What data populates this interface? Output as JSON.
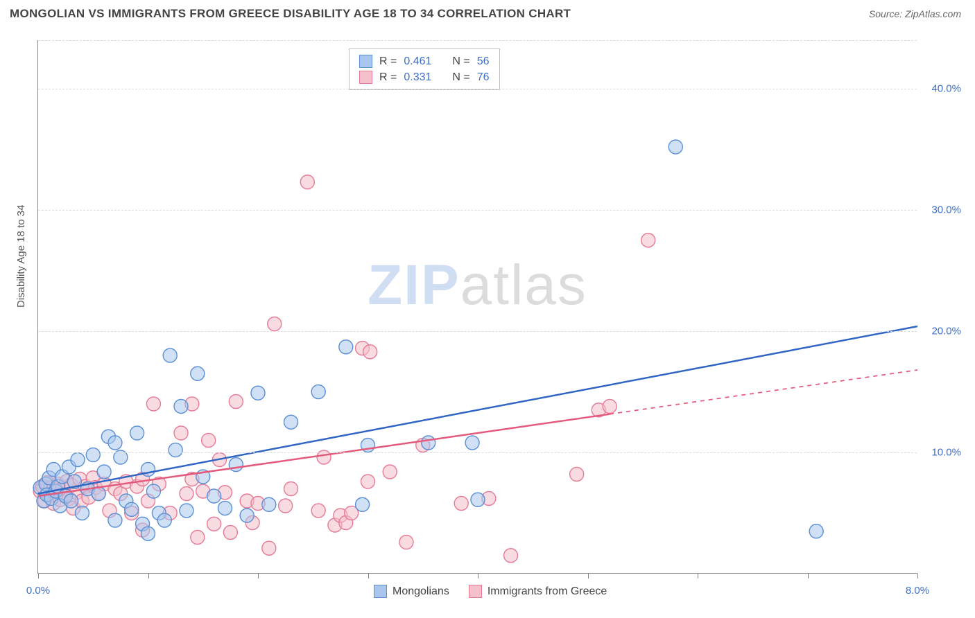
{
  "header": {
    "title": "MONGOLIAN VS IMMIGRANTS FROM GREECE DISABILITY AGE 18 TO 34 CORRELATION CHART",
    "source": "Source: ZipAtlas.com"
  },
  "chart": {
    "type": "scatter",
    "watermark_zip": "ZIP",
    "watermark_atlas": "atlas",
    "yaxis_label": "Disability Age 18 to 34",
    "background_color": "#ffffff",
    "grid_color": "#dcdcdc",
    "axis_color": "#888888",
    "xlim": [
      0,
      8
    ],
    "ylim": [
      0,
      44
    ],
    "xtick_step": 1,
    "xtick_labels": {
      "0": "0.0%",
      "8": "8.0%"
    },
    "ytick_step": 10,
    "ytick_labels": {
      "10": "10.0%",
      "20": "20.0%",
      "30": "30.0%",
      "40": "40.0%"
    },
    "tick_color": "#3b6fc9",
    "label_fontsize": 15,
    "marker_radius": 10,
    "marker_opacity": 0.55,
    "series": [
      {
        "id": "mongolians",
        "label": "Mongolians",
        "color_fill": "#a9c6ec",
        "color_stroke": "#5a8fd6",
        "R": "0.461",
        "N": "56",
        "trend": {
          "x0": 0,
          "y0": 6.6,
          "x1": 8,
          "y1": 20.4,
          "solid_until_x": 8,
          "color": "#2f66c4",
          "width": 2.5
        },
        "points": [
          [
            0.02,
            7.1
          ],
          [
            0.05,
            6.0
          ],
          [
            0.07,
            7.4
          ],
          [
            0.08,
            6.5
          ],
          [
            0.1,
            7.9
          ],
          [
            0.12,
            6.2
          ],
          [
            0.14,
            8.6
          ],
          [
            0.16,
            6.8
          ],
          [
            0.18,
            7.2
          ],
          [
            0.2,
            5.6
          ],
          [
            0.22,
            8.0
          ],
          [
            0.25,
            6.4
          ],
          [
            0.28,
            8.8
          ],
          [
            0.3,
            6.0
          ],
          [
            0.33,
            7.6
          ],
          [
            0.36,
            9.4
          ],
          [
            0.4,
            5.0
          ],
          [
            0.45,
            7.0
          ],
          [
            0.5,
            9.8
          ],
          [
            0.55,
            6.6
          ],
          [
            0.6,
            8.4
          ],
          [
            0.64,
            11.3
          ],
          [
            0.7,
            4.4
          ],
          [
            0.75,
            9.6
          ],
          [
            0.8,
            6.0
          ],
          [
            0.85,
            5.3
          ],
          [
            0.9,
            11.6
          ],
          [
            0.95,
            4.1
          ],
          [
            1.0,
            8.6
          ],
          [
            1.05,
            6.8
          ],
          [
            1.1,
            5.0
          ],
          [
            1.15,
            4.4
          ],
          [
            1.2,
            18.0
          ],
          [
            1.25,
            10.2
          ],
          [
            1.3,
            13.8
          ],
          [
            1.35,
            5.2
          ],
          [
            1.45,
            16.5
          ],
          [
            1.5,
            8.0
          ],
          [
            1.6,
            6.4
          ],
          [
            1.7,
            5.4
          ],
          [
            1.8,
            9.0
          ],
          [
            1.9,
            4.8
          ],
          [
            2.0,
            14.9
          ],
          [
            2.1,
            5.7
          ],
          [
            2.3,
            12.5
          ],
          [
            2.55,
            15.0
          ],
          [
            2.8,
            18.7
          ],
          [
            2.95,
            5.7
          ],
          [
            3.0,
            10.6
          ],
          [
            3.55,
            10.8
          ],
          [
            3.95,
            10.8
          ],
          [
            4.0,
            6.1
          ],
          [
            5.8,
            35.2
          ],
          [
            7.08,
            3.5
          ],
          [
            1.0,
            3.3
          ],
          [
            0.7,
            10.8
          ]
        ]
      },
      {
        "id": "greece",
        "label": "Immigrants from Greece",
        "color_fill": "#f4c0cb",
        "color_stroke": "#e77a94",
        "R": "0.331",
        "N": "76",
        "trend": {
          "x0": 0,
          "y0": 6.4,
          "x1": 8,
          "y1": 16.8,
          "solid_until_x": 5.2,
          "color": "#e35a7c",
          "width": 2.5
        },
        "points": [
          [
            0.02,
            6.8
          ],
          [
            0.04,
            7.2
          ],
          [
            0.06,
            6.0
          ],
          [
            0.08,
            7.5
          ],
          [
            0.1,
            6.4
          ],
          [
            0.12,
            7.1
          ],
          [
            0.14,
            5.8
          ],
          [
            0.16,
            6.9
          ],
          [
            0.18,
            7.4
          ],
          [
            0.2,
            6.1
          ],
          [
            0.22,
            7.0
          ],
          [
            0.24,
            6.5
          ],
          [
            0.26,
            7.6
          ],
          [
            0.28,
            6.2
          ],
          [
            0.3,
            7.3
          ],
          [
            0.32,
            5.4
          ],
          [
            0.35,
            6.7
          ],
          [
            0.38,
            7.8
          ],
          [
            0.4,
            6.0
          ],
          [
            0.43,
            7.2
          ],
          [
            0.46,
            6.3
          ],
          [
            0.5,
            7.9
          ],
          [
            0.52,
            7.1
          ],
          [
            0.55,
            6.6
          ],
          [
            0.6,
            7.4
          ],
          [
            0.65,
            5.2
          ],
          [
            0.7,
            7.0
          ],
          [
            0.75,
            6.6
          ],
          [
            0.8,
            7.6
          ],
          [
            0.85,
            5.0
          ],
          [
            0.9,
            7.2
          ],
          [
            0.95,
            7.8
          ],
          [
            1.0,
            6.0
          ],
          [
            1.05,
            14.0
          ],
          [
            1.1,
            7.4
          ],
          [
            1.3,
            11.6
          ],
          [
            1.35,
            6.6
          ],
          [
            1.4,
            14.0
          ],
          [
            1.45,
            3.0
          ],
          [
            1.5,
            6.8
          ],
          [
            1.55,
            11.0
          ],
          [
            1.6,
            4.1
          ],
          [
            1.65,
            9.4
          ],
          [
            1.7,
            6.7
          ],
          [
            1.75,
            3.4
          ],
          [
            1.8,
            14.2
          ],
          [
            1.9,
            6.0
          ],
          [
            1.95,
            4.2
          ],
          [
            2.0,
            5.8
          ],
          [
            2.1,
            2.1
          ],
          [
            2.15,
            20.6
          ],
          [
            2.25,
            5.6
          ],
          [
            2.3,
            7.0
          ],
          [
            2.45,
            32.3
          ],
          [
            2.55,
            5.2
          ],
          [
            2.7,
            4.0
          ],
          [
            2.75,
            4.8
          ],
          [
            2.8,
            4.2
          ],
          [
            2.85,
            5.0
          ],
          [
            2.95,
            18.6
          ],
          [
            3.0,
            7.6
          ],
          [
            3.02,
            18.3
          ],
          [
            3.2,
            8.4
          ],
          [
            3.35,
            2.6
          ],
          [
            3.5,
            10.6
          ],
          [
            3.85,
            5.8
          ],
          [
            4.1,
            6.2
          ],
          [
            4.3,
            1.5
          ],
          [
            4.9,
            8.2
          ],
          [
            5.1,
            13.5
          ],
          [
            5.2,
            13.8
          ],
          [
            5.55,
            27.5
          ],
          [
            2.6,
            9.6
          ],
          [
            1.2,
            5.0
          ],
          [
            0.95,
            3.6
          ],
          [
            1.4,
            7.8
          ]
        ]
      }
    ],
    "legend_top": {
      "border_color": "#bfbfbf",
      "rows": [
        {
          "swatch_fill": "#a9c6ec",
          "swatch_stroke": "#5a8fd6",
          "r_label": "R =",
          "r_value": "0.461",
          "n_label": "N =",
          "n_value": "56"
        },
        {
          "swatch_fill": "#f4c0cb",
          "swatch_stroke": "#e77a94",
          "r_label": "R =",
          "r_value": "0.331",
          "n_label": "N =",
          "n_value": "76"
        }
      ]
    },
    "legend_bottom": [
      {
        "swatch_fill": "#a9c6ec",
        "swatch_stroke": "#5a8fd6",
        "label": "Mongolians"
      },
      {
        "swatch_fill": "#f4c0cb",
        "swatch_stroke": "#e77a94",
        "label": "Immigrants from Greece"
      }
    ]
  }
}
